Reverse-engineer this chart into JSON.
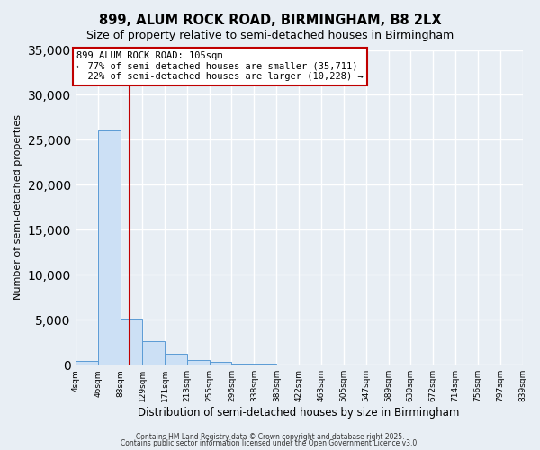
{
  "title": "899, ALUM ROCK ROAD, BIRMINGHAM, B8 2LX",
  "subtitle": "Size of property relative to semi-detached houses in Birmingham",
  "xlabel": "Distribution of semi-detached houses by size in Birmingham",
  "ylabel": "Number of semi-detached properties",
  "bin_edges": [
    4,
    46,
    88,
    129,
    171,
    213,
    255,
    296,
    338,
    380,
    422,
    463,
    505,
    547,
    589,
    630,
    672,
    714,
    756,
    797,
    839
  ],
  "bin_counts": [
    400,
    26000,
    5100,
    2600,
    1200,
    500,
    300,
    150,
    80,
    40,
    20,
    10,
    5,
    3,
    2,
    1,
    1,
    0,
    0,
    0
  ],
  "property_size": 105,
  "pct_smaller": 77,
  "num_smaller": 35711,
  "pct_larger": 22,
  "num_larger": 10228,
  "bar_color": "#cce0f5",
  "bar_edge_color": "#5b9bd5",
  "vline_color": "#c00000",
  "background_color": "#e8eef4",
  "grid_color": "#ffffff",
  "ylim": [
    0,
    35000
  ],
  "yticks": [
    0,
    5000,
    10000,
    15000,
    20000,
    25000,
    30000,
    35000
  ],
  "footnote1": "Contains HM Land Registry data © Crown copyright and database right 2025.",
  "footnote2": "Contains public sector information licensed under the Open Government Licence v3.0."
}
